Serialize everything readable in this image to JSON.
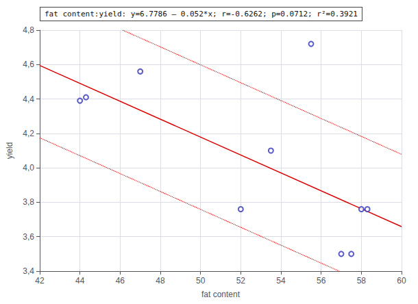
{
  "chart_data": {
    "type": "scatter",
    "xlabel": "fat content",
    "ylabel": "yield",
    "annotation": "fat content:yield: y=6.7786 – 0.052*x; r=-0.6262; p=0.0712; r²=0.3921",
    "xlim": [
      42,
      60
    ],
    "ylim": [
      3.4,
      4.8
    ],
    "xticks": [
      42,
      44,
      46,
      48,
      50,
      52,
      54,
      56,
      58,
      60
    ],
    "yticks": [
      {
        "value": 3.4,
        "label": "3,4"
      },
      {
        "value": 3.6,
        "label": "3,6"
      },
      {
        "value": 3.8,
        "label": "3,8"
      },
      {
        "value": 4.0,
        "label": "4,0"
      },
      {
        "value": 4.2,
        "label": "4,2"
      },
      {
        "value": 4.4,
        "label": "4,4"
      },
      {
        "value": 4.6,
        "label": "4,6"
      },
      {
        "value": 4.8,
        "label": "4,8"
      }
    ],
    "grid": true,
    "series": [
      {
        "type": "line",
        "line_style": "solid",
        "color": "#dd0000",
        "x": [
          42,
          60
        ],
        "values": [
          4.5946,
          3.6586
        ]
      },
      {
        "type": "line",
        "line_style": "dotted",
        "color": "#dd0000",
        "x": [
          46.1269,
          60
        ],
        "values": [
          4.8,
          4.0786
        ]
      },
      {
        "type": "line",
        "line_style": "dotted",
        "color": "#dd0000",
        "x": [
          42,
          56.8962
        ],
        "values": [
          4.1746,
          3.4
        ]
      },
      {
        "type": "scatter",
        "marker": "hollow",
        "color": "#3333bb",
        "x": [
          44.0,
          44.3,
          47.0,
          53.5,
          52.0,
          55.5,
          57.0,
          57.5,
          58.0,
          58.3
        ],
        "values": [
          4.39,
          4.41,
          4.56,
          4.1,
          3.76,
          4.72,
          3.5,
          3.5,
          3.76,
          3.76
        ]
      }
    ]
  }
}
